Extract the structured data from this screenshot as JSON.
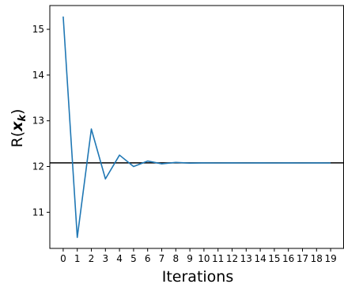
{
  "chart_data": {
    "type": "line",
    "title": "",
    "xlabel": "Iterations",
    "ylabel_text": "R(",
    "ylabel_math": "x",
    "ylabel_sub": "k",
    "ylabel_close": ")",
    "x": [
      0,
      1,
      2,
      3,
      4,
      5,
      6,
      7,
      8,
      9,
      10,
      11,
      12,
      13,
      14,
      15,
      16,
      17,
      18,
      19
    ],
    "x_tick_labels": [
      "0",
      "1",
      "2",
      "3",
      "4",
      "5",
      "6",
      "7",
      "8",
      "9",
      "10",
      "11",
      "12",
      "13",
      "14",
      "15",
      "16",
      "17",
      "18",
      "19"
    ],
    "series": [
      {
        "color": "#1f77b4",
        "values": [
          15.28,
          10.45,
          12.82,
          11.73,
          12.25,
          12.0,
          12.12,
          12.06,
          12.09,
          12.075,
          12.08,
          12.078,
          12.079,
          12.078,
          12.079,
          12.078,
          12.079,
          12.078,
          12.079,
          12.078
        ]
      }
    ],
    "reference_line": {
      "y": 12.08,
      "color": "#000000"
    },
    "y_ticks": [
      11,
      12,
      13,
      14,
      15
    ],
    "y_tick_labels": [
      "11",
      "12",
      "13",
      "14",
      "15"
    ],
    "xlim": [
      -0.95,
      19.95
    ],
    "ylim": [
      10.21,
      15.52
    ],
    "grid": false
  }
}
